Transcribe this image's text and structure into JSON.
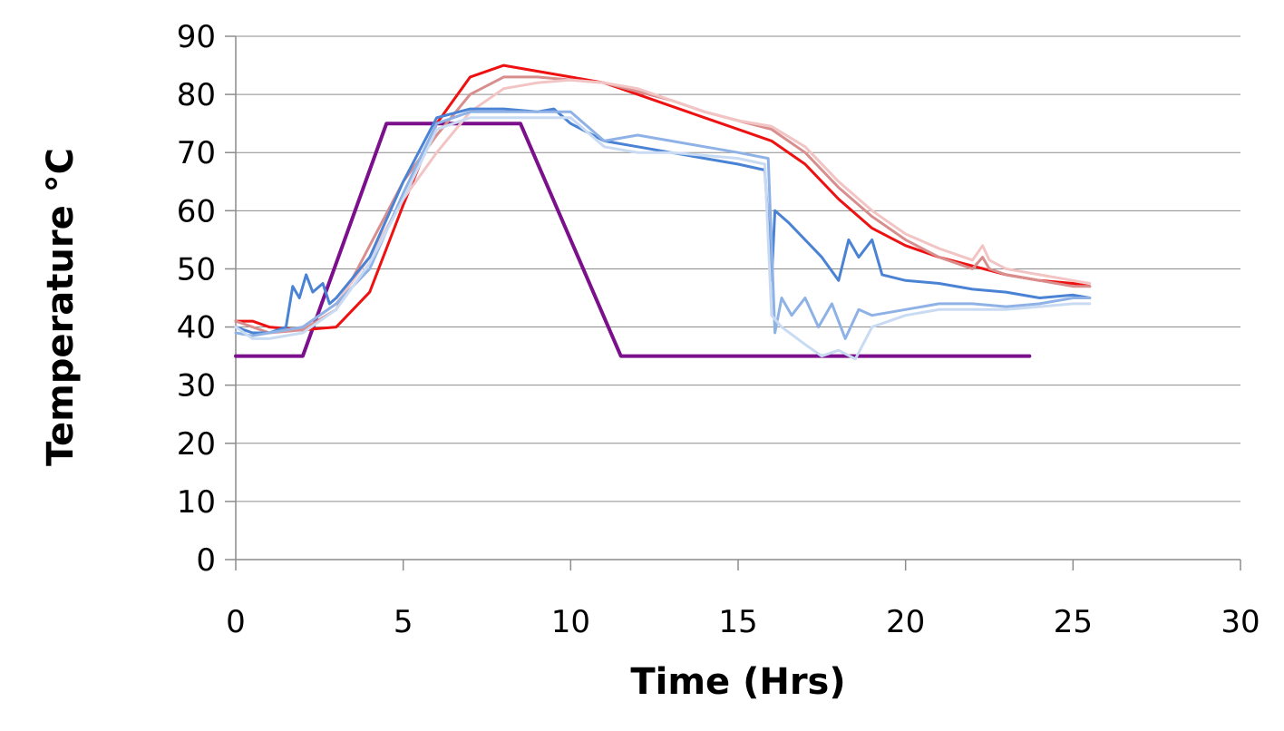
{
  "chart_data": {
    "type": "line",
    "title": "",
    "xlabel": "Time (Hrs)",
    "ylabel": "Temperature °C",
    "xlim": [
      0,
      30
    ],
    "ylim": [
      0,
      90
    ],
    "x_ticks": [
      0,
      5,
      10,
      15,
      20,
      25,
      30
    ],
    "y_ticks": [
      0,
      10,
      20,
      30,
      40,
      50,
      60,
      70,
      80,
      90
    ],
    "grid": "horizontal",
    "legend": "none",
    "series": [
      {
        "color": "#7b0f8c",
        "width": 4,
        "points": [
          [
            0,
            35
          ],
          [
            2.0,
            35
          ],
          [
            4.5,
            75
          ],
          [
            8.5,
            75
          ],
          [
            11.5,
            35
          ],
          [
            23.7,
            35
          ]
        ]
      },
      {
        "color": "#ee1111",
        "width": 3,
        "points": [
          [
            0,
            41
          ],
          [
            0.5,
            41
          ],
          [
            1,
            40
          ],
          [
            2,
            39.5
          ],
          [
            3,
            40
          ],
          [
            4,
            46
          ],
          [
            5,
            61
          ],
          [
            6,
            75
          ],
          [
            7,
            83
          ],
          [
            8,
            85
          ],
          [
            9,
            84
          ],
          [
            10,
            83
          ],
          [
            11,
            82
          ],
          [
            12,
            80
          ],
          [
            13,
            78
          ],
          [
            14,
            76
          ],
          [
            15,
            74
          ],
          [
            16,
            72
          ],
          [
            17,
            68
          ],
          [
            18,
            62
          ],
          [
            19,
            57
          ],
          [
            20,
            54
          ],
          [
            21,
            52
          ],
          [
            22,
            50.5
          ],
          [
            23,
            49
          ],
          [
            24,
            48
          ],
          [
            25,
            47.5
          ],
          [
            25.5,
            47
          ]
        ]
      },
      {
        "color": "#d98e8e",
        "width": 3,
        "points": [
          [
            0,
            41
          ],
          [
            0.5,
            40
          ],
          [
            1,
            39
          ],
          [
            2,
            39.5
          ],
          [
            3,
            43
          ],
          [
            4,
            54
          ],
          [
            5,
            65
          ],
          [
            6,
            73
          ],
          [
            7,
            80
          ],
          [
            8,
            83
          ],
          [
            9,
            83
          ],
          [
            10,
            82.5
          ],
          [
            11,
            82
          ],
          [
            12,
            80.5
          ],
          [
            13,
            79
          ],
          [
            14,
            77
          ],
          [
            15,
            75.5
          ],
          [
            16,
            74
          ],
          [
            17,
            70
          ],
          [
            18,
            64
          ],
          [
            19,
            59
          ],
          [
            20,
            55
          ],
          [
            21,
            52
          ],
          [
            22,
            50
          ],
          [
            22.3,
            52
          ],
          [
            22.5,
            50
          ],
          [
            23,
            49
          ],
          [
            24,
            48
          ],
          [
            25,
            47
          ],
          [
            25.5,
            47
          ]
        ]
      },
      {
        "color": "#f2c4c4",
        "width": 3,
        "points": [
          [
            0,
            40
          ],
          [
            0.5,
            39
          ],
          [
            1,
            39
          ],
          [
            2,
            40
          ],
          [
            3,
            44
          ],
          [
            4,
            52
          ],
          [
            5,
            62
          ],
          [
            6,
            70
          ],
          [
            7,
            77
          ],
          [
            8,
            81
          ],
          [
            9,
            82
          ],
          [
            10,
            82.5
          ],
          [
            11,
            82
          ],
          [
            12,
            81
          ],
          [
            13,
            79
          ],
          [
            14,
            77
          ],
          [
            15,
            75.5
          ],
          [
            16,
            74.5
          ],
          [
            17,
            71
          ],
          [
            18,
            65
          ],
          [
            19,
            60
          ],
          [
            20,
            56
          ],
          [
            21,
            53.5
          ],
          [
            22,
            51.5
          ],
          [
            22.3,
            54
          ],
          [
            22.5,
            51.5
          ],
          [
            23,
            50
          ],
          [
            24,
            49
          ],
          [
            25,
            48
          ],
          [
            25.5,
            47.5
          ]
        ]
      },
      {
        "color": "#4a82d4",
        "width": 3,
        "points": [
          [
            0,
            40
          ],
          [
            0.5,
            39
          ],
          [
            1,
            39
          ],
          [
            1.5,
            40
          ],
          [
            1.7,
            47
          ],
          [
            1.9,
            45
          ],
          [
            2.1,
            49
          ],
          [
            2.3,
            46
          ],
          [
            2.6,
            47.5
          ],
          [
            2.8,
            44
          ],
          [
            3,
            45
          ],
          [
            4,
            52
          ],
          [
            5,
            65
          ],
          [
            6,
            76
          ],
          [
            7,
            77.5
          ],
          [
            8,
            77.5
          ],
          [
            9,
            77
          ],
          [
            9.5,
            77.5
          ],
          [
            10,
            75
          ],
          [
            11,
            72
          ],
          [
            12,
            71
          ],
          [
            13,
            70
          ],
          [
            14,
            69
          ],
          [
            15,
            68
          ],
          [
            15.8,
            67
          ],
          [
            16,
            48
          ],
          [
            16.1,
            60
          ],
          [
            16.5,
            58
          ],
          [
            17,
            55
          ],
          [
            17.5,
            52
          ],
          [
            18,
            48
          ],
          [
            18.3,
            55
          ],
          [
            18.6,
            52
          ],
          [
            19,
            55
          ],
          [
            19.3,
            49
          ],
          [
            20,
            48
          ],
          [
            21,
            47.5
          ],
          [
            22,
            46.5
          ],
          [
            23,
            46
          ],
          [
            24,
            45
          ],
          [
            25,
            45.5
          ],
          [
            25.5,
            45
          ]
        ]
      },
      {
        "color": "#8fb2e6",
        "width": 3,
        "points": [
          [
            0,
            39
          ],
          [
            0.5,
            38.5
          ],
          [
            1,
            39
          ],
          [
            2,
            40
          ],
          [
            3,
            44
          ],
          [
            4,
            50
          ],
          [
            5,
            63
          ],
          [
            6,
            75
          ],
          [
            7,
            77
          ],
          [
            8,
            77
          ],
          [
            9,
            77
          ],
          [
            10,
            77
          ],
          [
            11,
            72
          ],
          [
            12,
            73
          ],
          [
            13,
            72
          ],
          [
            14,
            71
          ],
          [
            15,
            70
          ],
          [
            15.9,
            69
          ],
          [
            16.1,
            39
          ],
          [
            16.3,
            45
          ],
          [
            16.6,
            42
          ],
          [
            17,
            45
          ],
          [
            17.4,
            40
          ],
          [
            17.8,
            44
          ],
          [
            18.2,
            38
          ],
          [
            18.6,
            43
          ],
          [
            19,
            42
          ],
          [
            20,
            43
          ],
          [
            21,
            44
          ],
          [
            22,
            44
          ],
          [
            23,
            43.5
          ],
          [
            24,
            44
          ],
          [
            25,
            45
          ],
          [
            25.5,
            45
          ]
        ]
      },
      {
        "color": "#c9dbf2",
        "width": 3,
        "points": [
          [
            0,
            40
          ],
          [
            0.5,
            38
          ],
          [
            1,
            38
          ],
          [
            2,
            39
          ],
          [
            3,
            43
          ],
          [
            4,
            51
          ],
          [
            5,
            62
          ],
          [
            6,
            74
          ],
          [
            7,
            76
          ],
          [
            8,
            76
          ],
          [
            9,
            76
          ],
          [
            10,
            76
          ],
          [
            11,
            71
          ],
          [
            12,
            70
          ],
          [
            13,
            70
          ],
          [
            14,
            69.5
          ],
          [
            15,
            69
          ],
          [
            15.8,
            68
          ],
          [
            16,
            42
          ],
          [
            16.3,
            40
          ],
          [
            17,
            37
          ],
          [
            17.5,
            35
          ],
          [
            18,
            36
          ],
          [
            18.5,
            34.5
          ],
          [
            19,
            40
          ],
          [
            20,
            42
          ],
          [
            21,
            43
          ],
          [
            22,
            43
          ],
          [
            23,
            43
          ],
          [
            24,
            43.5
          ],
          [
            25,
            44
          ],
          [
            25.5,
            44
          ]
        ]
      }
    ]
  }
}
